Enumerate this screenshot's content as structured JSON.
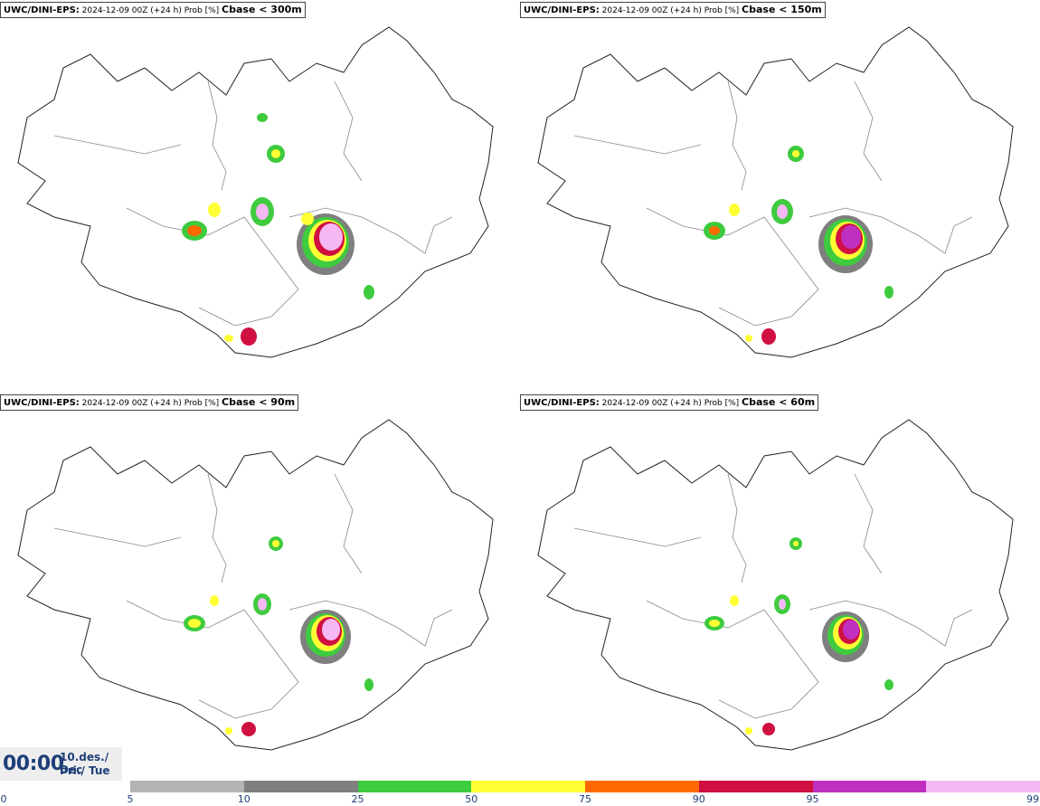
{
  "panels": [
    {
      "source": "UWC/DINI-EPS:",
      "info": "2024-12-09 00Z (+24 h) Prob [%]",
      "variable": "Cbase < 300m"
    },
    {
      "source": "UWC/DINI-EPS:",
      "info": "2024-12-09 00Z (+24 h) Prob [%]",
      "variable": "Cbase < 150m"
    },
    {
      "source": "UWC/DINI-EPS:",
      "info": "2024-12-09 00Z (+24 h) Prob [%]",
      "variable": "Cbase < 90m"
    },
    {
      "source": "UWC/DINI-EPS:",
      "info": "2024-12-09 00Z (+24 h) Prob [%]",
      "variable": "Cbase < 60m"
    }
  ],
  "time": {
    "clock": "00:00",
    "date_line1": "10.des./ Dec",
    "date_line2": "Þri./ Tue"
  },
  "legend": {
    "ticks": [
      "0",
      "5",
      "10",
      "25",
      "50",
      "75",
      "90",
      "95",
      "99"
    ],
    "colors": [
      "#b4b4b4",
      "#7f7f7f",
      "#3ecb3e",
      "#ffff33",
      "#ff6a00",
      "#d01040",
      "#c030c0",
      "#f5b8f5"
    ]
  }
}
